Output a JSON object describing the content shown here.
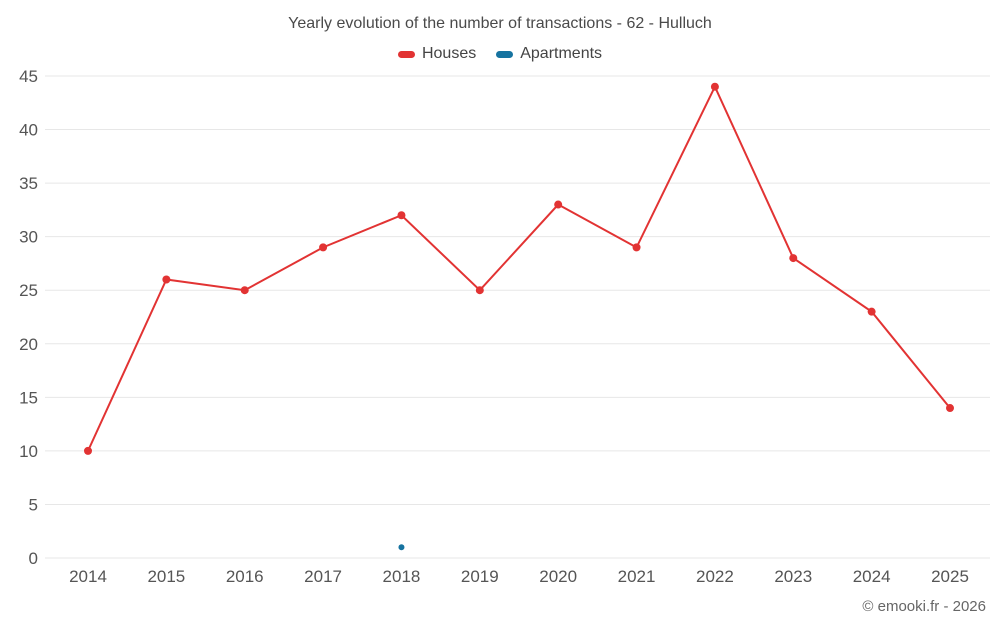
{
  "chart_data": {
    "type": "line",
    "title": "Yearly evolution of the number of transactions - 62 - Hulluch",
    "categories": [
      "2014",
      "2015",
      "2016",
      "2017",
      "2018",
      "2019",
      "2020",
      "2021",
      "2022",
      "2023",
      "2024",
      "2025"
    ],
    "series": [
      {
        "name": "Houses",
        "color": "#e23333",
        "marker_radius": 4,
        "values": [
          10,
          26,
          25,
          29,
          32,
          25,
          33,
          29,
          44,
          28,
          23,
          14
        ]
      },
      {
        "name": "Apartments",
        "color": "#1673a0",
        "marker_radius": 3,
        "values": [
          null,
          null,
          null,
          null,
          1,
          null,
          null,
          null,
          null,
          null,
          null,
          null
        ]
      }
    ],
    "xlabel": "",
    "ylabel": "",
    "ylim": [
      0,
      45
    ],
    "ytick_step": 5,
    "grid": true,
    "grid_color": "#e7e7e7",
    "legend_position": "top",
    "axis_text_color": "#555555"
  },
  "footer": {
    "credit": "© emooki.fr - 2026"
  }
}
